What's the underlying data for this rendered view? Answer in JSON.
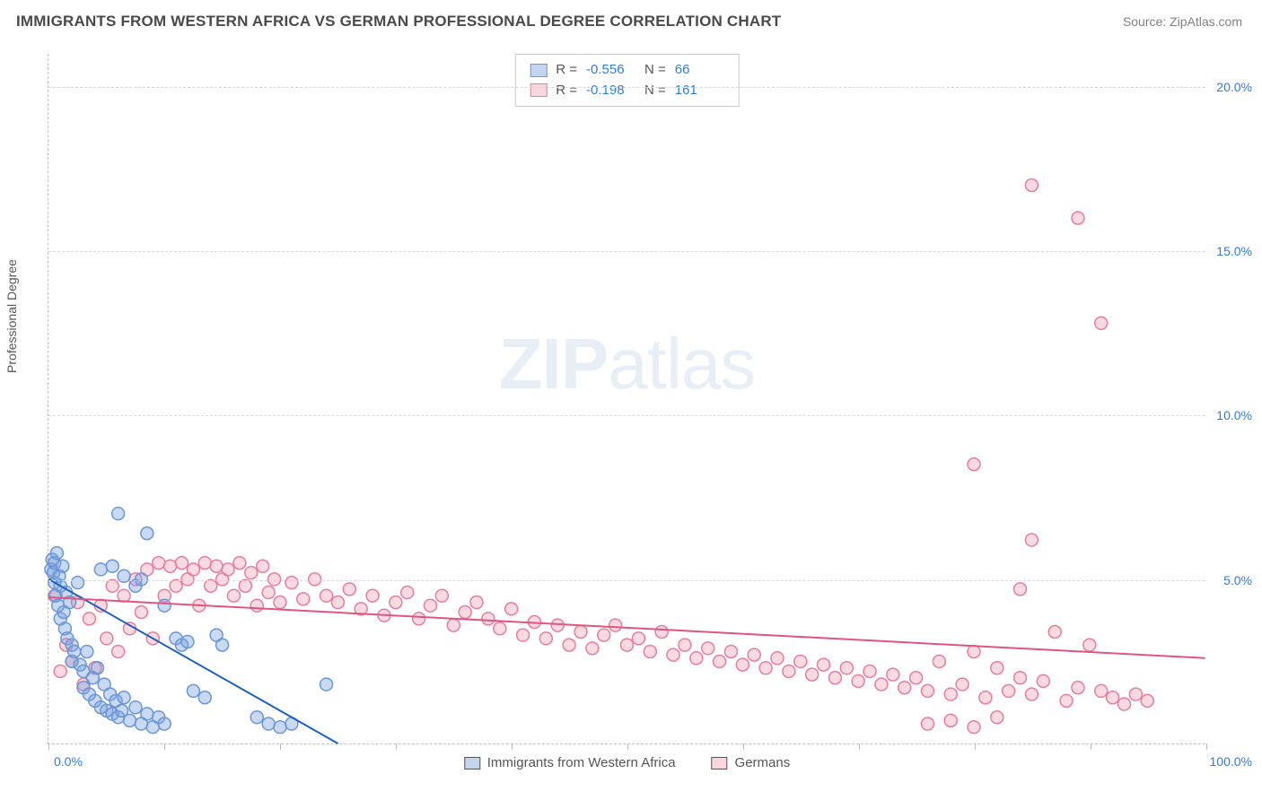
{
  "title": "IMMIGRANTS FROM WESTERN AFRICA VS GERMAN PROFESSIONAL DEGREE CORRELATION CHART",
  "source": "Source: ZipAtlas.com",
  "y_axis_label": "Professional Degree",
  "watermark_zip": "ZIP",
  "watermark_atlas": "atlas",
  "chart": {
    "type": "scatter",
    "background_color": "#ffffff",
    "grid_color": "#d8d8d8",
    "xlim": [
      0,
      100
    ],
    "ylim": [
      0,
      21
    ],
    "xticks": [
      0,
      10,
      20,
      30,
      40,
      50,
      60,
      70,
      80,
      90,
      100
    ],
    "xtick_labels_shown": {
      "0": "0.0%",
      "100": "100.0%"
    },
    "yticks": [
      5,
      10,
      15,
      20
    ],
    "ytick_labels": [
      "5.0%",
      "10.0%",
      "15.0%",
      "20.0%"
    ],
    "axis_label_color": "#2f7ed8",
    "text_color": "#555555",
    "marker_radius": 7,
    "marker_stroke_width": 1.5,
    "line_width": 2,
    "series": [
      {
        "id": "blue",
        "label": "Immigrants from Western Africa",
        "fill": "rgba(120,160,220,0.4)",
        "stroke": "#6a96d8",
        "stats": {
          "R": "-0.556",
          "N": "66"
        },
        "trend": {
          "x1": 0,
          "y1": 5.0,
          "x2": 25,
          "y2": 0.0,
          "color": "#1c5fc4"
        },
        "points": [
          [
            0.2,
            5.3
          ],
          [
            0.3,
            5.6
          ],
          [
            0.4,
            5.2
          ],
          [
            0.5,
            4.9
          ],
          [
            0.5,
            5.5
          ],
          [
            0.6,
            4.5
          ],
          [
            0.7,
            5.8
          ],
          [
            0.8,
            4.2
          ],
          [
            0.9,
            5.1
          ],
          [
            1.0,
            4.8
          ],
          [
            1.0,
            3.8
          ],
          [
            1.2,
            5.4
          ],
          [
            1.3,
            4.0
          ],
          [
            1.4,
            3.5
          ],
          [
            1.5,
            4.6
          ],
          [
            1.6,
            3.2
          ],
          [
            1.8,
            4.3
          ],
          [
            2.0,
            3.0
          ],
          [
            2.0,
            2.5
          ],
          [
            2.2,
            2.8
          ],
          [
            2.5,
            4.9
          ],
          [
            2.7,
            2.4
          ],
          [
            3.0,
            2.2
          ],
          [
            3.0,
            1.7
          ],
          [
            3.3,
            2.8
          ],
          [
            3.5,
            1.5
          ],
          [
            3.8,
            2.0
          ],
          [
            4.0,
            1.3
          ],
          [
            4.2,
            2.3
          ],
          [
            4.5,
            1.1
          ],
          [
            4.8,
            1.8
          ],
          [
            5.0,
            1.0
          ],
          [
            5.3,
            1.5
          ],
          [
            5.5,
            0.9
          ],
          [
            5.8,
            1.3
          ],
          [
            6.0,
            0.8
          ],
          [
            6.3,
            1.0
          ],
          [
            6.5,
            1.4
          ],
          [
            7.0,
            0.7
          ],
          [
            7.5,
            1.1
          ],
          [
            8.0,
            0.6
          ],
          [
            8.5,
            0.9
          ],
          [
            9.0,
            0.5
          ],
          [
            9.5,
            0.8
          ],
          [
            10.0,
            0.6
          ],
          [
            6.0,
            7.0
          ],
          [
            8.5,
            6.4
          ],
          [
            4.5,
            5.3
          ],
          [
            5.5,
            5.4
          ],
          [
            6.5,
            5.1
          ],
          [
            7.5,
            4.8
          ],
          [
            8.0,
            5.0
          ],
          [
            10.0,
            4.2
          ],
          [
            11.0,
            3.2
          ],
          [
            11.5,
            3.0
          ],
          [
            12.0,
            3.1
          ],
          [
            14.5,
            3.3
          ],
          [
            15.0,
            3.0
          ],
          [
            12.5,
            1.6
          ],
          [
            13.5,
            1.4
          ],
          [
            18.0,
            0.8
          ],
          [
            19.0,
            0.6
          ],
          [
            20.0,
            0.5
          ],
          [
            21.0,
            0.6
          ],
          [
            24.0,
            1.8
          ]
        ]
      },
      {
        "id": "pink",
        "label": "Germans",
        "fill": "rgba(240,150,170,0.35)",
        "stroke": "#e67da0",
        "stats": {
          "R": "-0.198",
          "N": "161"
        },
        "trend": {
          "x1": 0,
          "y1": 4.45,
          "x2": 100,
          "y2": 2.6,
          "color": "#e0557f"
        },
        "points": [
          [
            0.5,
            4.5
          ],
          [
            1.0,
            2.2
          ],
          [
            1.5,
            3.0
          ],
          [
            2.0,
            2.5
          ],
          [
            2.5,
            4.3
          ],
          [
            3.0,
            1.8
          ],
          [
            3.5,
            3.8
          ],
          [
            4.0,
            2.3
          ],
          [
            4.5,
            4.2
          ],
          [
            5.0,
            3.2
          ],
          [
            5.5,
            4.8
          ],
          [
            6.0,
            2.8
          ],
          [
            6.5,
            4.5
          ],
          [
            7.0,
            3.5
          ],
          [
            7.5,
            5.0
          ],
          [
            8.0,
            4.0
          ],
          [
            8.5,
            5.3
          ],
          [
            9.0,
            3.2
          ],
          [
            9.5,
            5.5
          ],
          [
            10.0,
            4.5
          ],
          [
            10.5,
            5.4
          ],
          [
            11.0,
            4.8
          ],
          [
            11.5,
            5.5
          ],
          [
            12.0,
            5.0
          ],
          [
            12.5,
            5.3
          ],
          [
            13.0,
            4.2
          ],
          [
            13.5,
            5.5
          ],
          [
            14.0,
            4.8
          ],
          [
            14.5,
            5.4
          ],
          [
            15.0,
            5.0
          ],
          [
            15.5,
            5.3
          ],
          [
            16.0,
            4.5
          ],
          [
            16.5,
            5.5
          ],
          [
            17.0,
            4.8
          ],
          [
            17.5,
            5.2
          ],
          [
            18.0,
            4.2
          ],
          [
            18.5,
            5.4
          ],
          [
            19.0,
            4.6
          ],
          [
            19.5,
            5.0
          ],
          [
            20.0,
            4.3
          ],
          [
            21.0,
            4.9
          ],
          [
            22.0,
            4.4
          ],
          [
            23.0,
            5.0
          ],
          [
            24.0,
            4.5
          ],
          [
            25.0,
            4.3
          ],
          [
            26.0,
            4.7
          ],
          [
            27.0,
            4.1
          ],
          [
            28.0,
            4.5
          ],
          [
            29.0,
            3.9
          ],
          [
            30.0,
            4.3
          ],
          [
            31.0,
            4.6
          ],
          [
            32.0,
            3.8
          ],
          [
            33.0,
            4.2
          ],
          [
            34.0,
            4.5
          ],
          [
            35.0,
            3.6
          ],
          [
            36.0,
            4.0
          ],
          [
            37.0,
            4.3
          ],
          [
            38.0,
            3.8
          ],
          [
            39.0,
            3.5
          ],
          [
            40.0,
            4.1
          ],
          [
            41.0,
            3.3
          ],
          [
            42.0,
            3.7
          ],
          [
            43.0,
            3.2
          ],
          [
            44.0,
            3.6
          ],
          [
            45.0,
            3.0
          ],
          [
            46.0,
            3.4
          ],
          [
            47.0,
            2.9
          ],
          [
            48.0,
            3.3
          ],
          [
            49.0,
            3.6
          ],
          [
            50.0,
            3.0
          ],
          [
            51.0,
            3.2
          ],
          [
            52.0,
            2.8
          ],
          [
            53.0,
            3.4
          ],
          [
            54.0,
            2.7
          ],
          [
            55.0,
            3.0
          ],
          [
            56.0,
            2.6
          ],
          [
            57.0,
            2.9
          ],
          [
            58.0,
            2.5
          ],
          [
            59.0,
            2.8
          ],
          [
            60.0,
            2.4
          ],
          [
            61.0,
            2.7
          ],
          [
            62.0,
            2.3
          ],
          [
            63.0,
            2.6
          ],
          [
            64.0,
            2.2
          ],
          [
            65.0,
            2.5
          ],
          [
            66.0,
            2.1
          ],
          [
            67.0,
            2.4
          ],
          [
            68.0,
            2.0
          ],
          [
            69.0,
            2.3
          ],
          [
            70.0,
            1.9
          ],
          [
            71.0,
            2.2
          ],
          [
            72.0,
            1.8
          ],
          [
            73.0,
            2.1
          ],
          [
            74.0,
            1.7
          ],
          [
            75.0,
            2.0
          ],
          [
            76.0,
            1.6
          ],
          [
            77.0,
            2.5
          ],
          [
            78.0,
            1.5
          ],
          [
            79.0,
            1.8
          ],
          [
            80.0,
            2.8
          ],
          [
            81.0,
            1.4
          ],
          [
            82.0,
            2.3
          ],
          [
            83.0,
            1.6
          ],
          [
            84.0,
            2.0
          ],
          [
            85.0,
            1.5
          ],
          [
            86.0,
            1.9
          ],
          [
            87.0,
            3.4
          ],
          [
            88.0,
            1.3
          ],
          [
            89.0,
            1.7
          ],
          [
            90.0,
            3.0
          ],
          [
            76.0,
            0.6
          ],
          [
            78.0,
            0.7
          ],
          [
            80.0,
            0.5
          ],
          [
            82.0,
            0.8
          ],
          [
            84.0,
            4.7
          ],
          [
            80.0,
            8.5
          ],
          [
            85.0,
            6.2
          ],
          [
            91.0,
            1.6
          ],
          [
            92.0,
            1.4
          ],
          [
            93.0,
            1.2
          ],
          [
            94.0,
            1.5
          ],
          [
            95.0,
            1.3
          ],
          [
            85.0,
            17.0
          ],
          [
            89.0,
            16.0
          ],
          [
            91.0,
            12.8
          ]
        ]
      }
    ]
  },
  "stats_labels": {
    "R": "R =",
    "N": "N ="
  },
  "legend": [
    {
      "swatch_class": "sw-blue",
      "label": "Immigrants from Western Africa"
    },
    {
      "swatch_class": "sw-pink",
      "label": "Germans"
    }
  ]
}
